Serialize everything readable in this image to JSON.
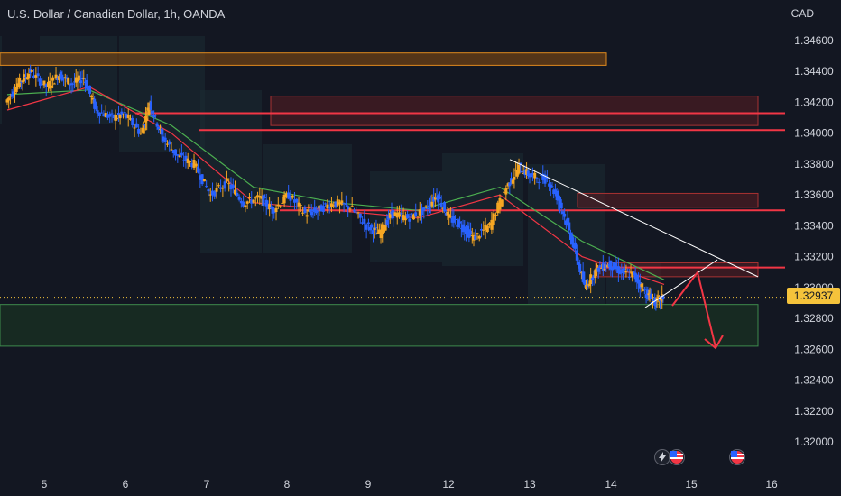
{
  "header": {
    "symbol_title": "U.S. Dollar / Canadian Dollar, 1h, OANDA",
    "currency": "CAD"
  },
  "price_axis": {
    "ticks": [
      "1.34600",
      "1.34400",
      "1.34200",
      "1.34000",
      "1.33800",
      "1.33600",
      "1.33400",
      "1.33200",
      "1.33000",
      "1.32800",
      "1.32600",
      "1.32400",
      "1.32200",
      "1.32000"
    ],
    "current_price_label": "1.32937"
  },
  "time_axis": {
    "ticks": [
      "5",
      "6",
      "7",
      "8",
      "9",
      "12",
      "13",
      "14",
      "15",
      "16"
    ]
  },
  "colors": {
    "background": "#131722",
    "up_candle": "#f5a623",
    "down_candle": "#2962ff",
    "resistance_line": "#f23645",
    "supply_zone_top": "#e08a1e",
    "supply_zone": "#5a1e22",
    "demand_zone": "#1b3a22",
    "trendline": "#ffffff",
    "ma_green": "#4caf50",
    "ma_red": "#f23645",
    "price_tag": "#f5c33b",
    "projection_arrow": "#f23645"
  },
  "icons": [
    "lightning-icon",
    "us-flag-icon",
    "us-flag-icon"
  ],
  "chart_data": {
    "type": "candlestick",
    "title": "U.S. Dollar / Canadian Dollar, 1h, OANDA",
    "xlabel": "",
    "ylabel": "CAD",
    "ylim": [
      1.3185,
      1.3472
    ],
    "x_ticks": [
      "5",
      "6",
      "7",
      "8",
      "9",
      "12",
      "13",
      "14",
      "15",
      "16"
    ],
    "y_ticks": [
      1.346,
      1.344,
      1.342,
      1.34,
      1.338,
      1.336,
      1.334,
      1.332,
      1.33,
      1.328,
      1.326,
      1.324,
      1.322,
      1.32
    ],
    "last_price": 1.32937,
    "price_path": [
      [
        0,
        1.342
      ],
      [
        0.3,
        1.3432
      ],
      [
        0.6,
        1.344
      ],
      [
        1.0,
        1.343
      ],
      [
        1.3,
        1.3438
      ],
      [
        1.6,
        1.3432
      ],
      [
        1.9,
        1.3436
      ],
      [
        2.2,
        1.3415
      ],
      [
        2.6,
        1.341
      ],
      [
        2.9,
        1.3412
      ],
      [
        3.3,
        1.34
      ],
      [
        3.5,
        1.342
      ],
      [
        3.8,
        1.3398
      ],
      [
        4.2,
        1.3385
      ],
      [
        4.6,
        1.338
      ],
      [
        5.0,
        1.336
      ],
      [
        5.4,
        1.3368
      ],
      [
        5.8,
        1.3355
      ],
      [
        6.2,
        1.3358
      ],
      [
        6.5,
        1.335
      ],
      [
        6.9,
        1.336
      ],
      [
        7.3,
        1.3348
      ],
      [
        7.6,
        1.335
      ],
      [
        8.0,
        1.3355
      ],
      [
        8.4,
        1.3352
      ],
      [
        8.8,
        1.334
      ],
      [
        9.1,
        1.3335
      ],
      [
        9.4,
        1.3348
      ],
      [
        9.8,
        1.3345
      ],
      [
        10.2,
        1.335
      ],
      [
        10.5,
        1.336
      ],
      [
        10.8,
        1.3345
      ],
      [
        11.1,
        1.334
      ],
      [
        11.4,
        1.3332
      ],
      [
        11.8,
        1.334
      ],
      [
        12.2,
        1.3365
      ],
      [
        12.5,
        1.3378
      ],
      [
        12.8,
        1.3372
      ],
      [
        13.2,
        1.337
      ],
      [
        13.5,
        1.3355
      ],
      [
        13.8,
        1.333
      ],
      [
        14.1,
        1.33
      ],
      [
        14.4,
        1.3312
      ],
      [
        14.7,
        1.3315
      ],
      [
        15.0,
        1.331
      ],
      [
        15.3,
        1.3308
      ],
      [
        15.6,
        1.3296
      ],
      [
        15.8,
        1.329
      ],
      [
        16.0,
        1.32937
      ]
    ],
    "series": [
      {
        "name": "",
        "type": "line",
        "points": [
          [
            0,
            1.3425
          ],
          [
            2,
            1.3428
          ],
          [
            4,
            1.3405
          ],
          [
            6,
            1.3365
          ],
          [
            8,
            1.3355
          ],
          [
            10,
            1.335
          ],
          [
            12,
            1.3365
          ],
          [
            14,
            1.333
          ],
          [
            16,
            1.3305
          ]
        ]
      },
      {
        "name": "",
        "type": "line",
        "points": [
          [
            0,
            1.3415
          ],
          [
            2,
            1.343
          ],
          [
            4,
            1.34
          ],
          [
            6,
            1.3355
          ],
          [
            8,
            1.335
          ],
          [
            10,
            1.3345
          ],
          [
            12,
            1.336
          ],
          [
            14,
            1.332
          ],
          [
            16,
            1.3302
          ]
        ]
      }
    ],
    "horizontal_levels": [
      {
        "price": 1.3413,
        "kind": "resistance"
      },
      {
        "price": 1.3402,
        "kind": "resistance"
      },
      {
        "price": 1.335,
        "kind": "resistance"
      },
      {
        "price": 1.3313,
        "kind": "resistance"
      }
    ],
    "zones": [
      {
        "kind": "supply",
        "from_price": 1.3444,
        "to_price": 1.3452,
        "color": "orange"
      },
      {
        "kind": "supply",
        "from_price": 1.3405,
        "to_price": 1.3424,
        "color": "red"
      },
      {
        "kind": "supply",
        "from_price": 1.3352,
        "to_price": 1.3361,
        "color": "red"
      },
      {
        "kind": "supply",
        "from_price": 1.3307,
        "to_price": 1.3316,
        "color": "red"
      },
      {
        "kind": "demand",
        "from_price": 1.3262,
        "to_price": 1.3289,
        "color": "green"
      }
    ],
    "trendline": {
      "from": [
        1.3383
      ],
      "to": [
        1.3307
      ]
    },
    "projection": {
      "direction": "down",
      "target_price": 1.326
    },
    "grid": false,
    "legend": "none"
  }
}
